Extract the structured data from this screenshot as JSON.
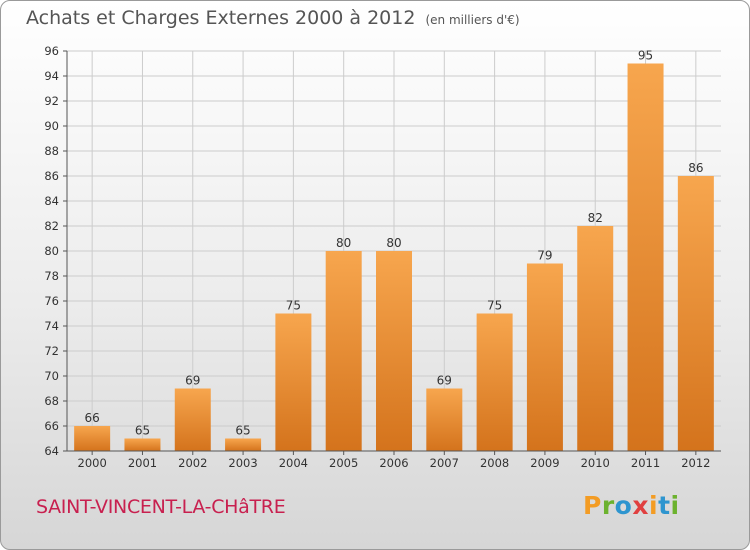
{
  "title": "Achats et Charges Externes 2000 à 2012",
  "unit": "(en milliers d'€)",
  "commune": "SAINT-VINCENT-LA-CHâTRE",
  "logo": {
    "letters": [
      "P",
      "r",
      "o",
      "x",
      "i",
      "t",
      "i"
    ],
    "colors": [
      "#f39c24",
      "#6cb22e",
      "#2e95cf",
      "#e04040",
      "#f39c24",
      "#2e95cf",
      "#6cb22e"
    ]
  },
  "colors": {
    "bar_light": "#f7a64e",
    "bar_dark": "#d4731c",
    "grid": "#cccccc",
    "axis": "#555555"
  },
  "chart_data": {
    "type": "bar",
    "categories": [
      "2000",
      "2001",
      "2002",
      "2003",
      "2004",
      "2005",
      "2006",
      "2007",
      "2008",
      "2009",
      "2010",
      "2011",
      "2012"
    ],
    "values": [
      66,
      65,
      69,
      65,
      75,
      80,
      80,
      69,
      75,
      79,
      82,
      95,
      86
    ],
    "ylim": [
      64,
      96
    ],
    "yticks": [
      64,
      66,
      68,
      70,
      72,
      74,
      76,
      78,
      80,
      82,
      84,
      86,
      88,
      90,
      92,
      94,
      96
    ],
    "grid": true,
    "legend": "none"
  }
}
